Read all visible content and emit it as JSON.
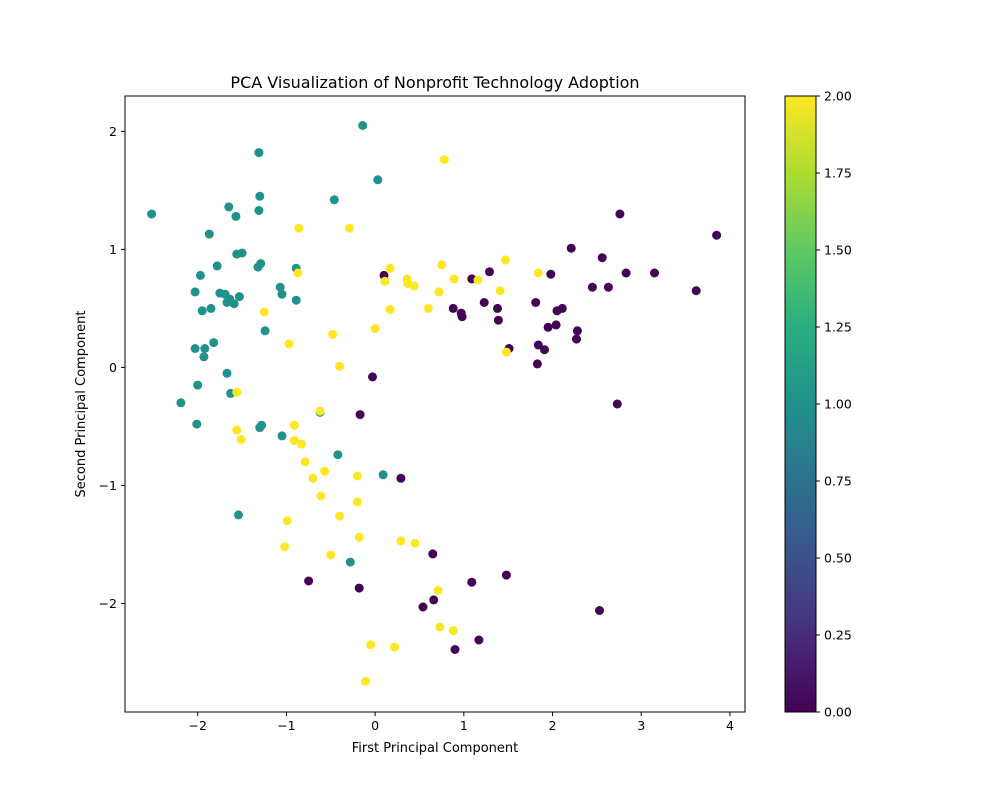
{
  "chart_data": {
    "type": "scatter",
    "title": "PCA Visualization of Nonprofit Technology Adoption",
    "xlabel": "First Principal Component",
    "ylabel": "Second Principal Component",
    "xlim": [
      -2.82,
      4.17
    ],
    "ylim": [
      -2.92,
      2.3
    ],
    "xticks": [
      -2,
      -1,
      0,
      1,
      2,
      3,
      4
    ],
    "yticks": [
      -2,
      -1,
      0,
      1,
      2
    ],
    "xtick_labels": [
      "−2",
      "−1",
      "0",
      "1",
      "2",
      "3",
      "4"
    ],
    "ytick_labels": [
      "−2",
      "−1",
      "0",
      "1",
      "2"
    ],
    "grid": false,
    "colormap": "viridis",
    "colorbar": {
      "range": [
        0,
        2
      ],
      "ticks": [
        0,
        0.25,
        0.5,
        0.75,
        1.0,
        1.25,
        1.5,
        1.75,
        2.0
      ],
      "tick_labels": [
        "0.00",
        "0.25",
        "0.50",
        "0.75",
        "1.00",
        "1.25",
        "1.50",
        "1.75",
        "2.00"
      ]
    },
    "colors": {
      "class_0": "#440154",
      "class_1": "#21918c",
      "class_2": "#fde725"
    },
    "points": [
      {
        "x": -2.52,
        "y": 1.3,
        "c": 1
      },
      {
        "x": -0.14,
        "y": 2.05,
        "c": 1
      },
      {
        "x": -1.31,
        "y": 1.82,
        "c": 1
      },
      {
        "x": 0.03,
        "y": 1.59,
        "c": 1
      },
      {
        "x": -0.46,
        "y": 1.42,
        "c": 1
      },
      {
        "x": -1.3,
        "y": 1.45,
        "c": 1
      },
      {
        "x": -1.65,
        "y": 1.36,
        "c": 1
      },
      {
        "x": -1.31,
        "y": 1.33,
        "c": 1
      },
      {
        "x": -1.57,
        "y": 1.28,
        "c": 1
      },
      {
        "x": -1.87,
        "y": 1.13,
        "c": 1
      },
      {
        "x": -1.5,
        "y": 0.97,
        "c": 1
      },
      {
        "x": -1.56,
        "y": 0.96,
        "c": 1
      },
      {
        "x": -1.29,
        "y": 0.88,
        "c": 1
      },
      {
        "x": -1.32,
        "y": 0.85,
        "c": 1
      },
      {
        "x": -1.78,
        "y": 0.86,
        "c": 1
      },
      {
        "x": -0.89,
        "y": 0.84,
        "c": 1
      },
      {
        "x": -1.97,
        "y": 0.78,
        "c": 1
      },
      {
        "x": -1.07,
        "y": 0.68,
        "c": 1
      },
      {
        "x": -2.03,
        "y": 0.64,
        "c": 1
      },
      {
        "x": -1.05,
        "y": 0.62,
        "c": 1
      },
      {
        "x": -1.75,
        "y": 0.63,
        "c": 1
      },
      {
        "x": -1.69,
        "y": 0.62,
        "c": 1
      },
      {
        "x": -1.53,
        "y": 0.6,
        "c": 1
      },
      {
        "x": -1.64,
        "y": 0.58,
        "c": 1
      },
      {
        "x": -0.89,
        "y": 0.57,
        "c": 1
      },
      {
        "x": -1.67,
        "y": 0.55,
        "c": 1
      },
      {
        "x": -1.59,
        "y": 0.54,
        "c": 1
      },
      {
        "x": -1.85,
        "y": 0.5,
        "c": 1
      },
      {
        "x": -1.95,
        "y": 0.48,
        "c": 1
      },
      {
        "x": -1.24,
        "y": 0.31,
        "c": 1
      },
      {
        "x": -1.82,
        "y": 0.21,
        "c": 1
      },
      {
        "x": -2.03,
        "y": 0.16,
        "c": 1
      },
      {
        "x": -1.92,
        "y": 0.16,
        "c": 1
      },
      {
        "x": -1.93,
        "y": 0.09,
        "c": 1
      },
      {
        "x": -1.67,
        "y": -0.05,
        "c": 1
      },
      {
        "x": -2.0,
        "y": -0.15,
        "c": 1
      },
      {
        "x": -1.63,
        "y": -0.22,
        "c": 1
      },
      {
        "x": -2.19,
        "y": -0.3,
        "c": 1
      },
      {
        "x": -0.62,
        "y": -0.38,
        "c": 1
      },
      {
        "x": -2.01,
        "y": -0.48,
        "c": 1
      },
      {
        "x": -1.28,
        "y": -0.49,
        "c": 1
      },
      {
        "x": -1.3,
        "y": -0.51,
        "c": 1
      },
      {
        "x": -1.05,
        "y": -0.58,
        "c": 1
      },
      {
        "x": -0.42,
        "y": -0.74,
        "c": 1
      },
      {
        "x": 0.09,
        "y": -0.91,
        "c": 1
      },
      {
        "x": -1.54,
        "y": -1.25,
        "c": 1
      },
      {
        "x": -0.28,
        "y": -1.65,
        "c": 1
      },
      {
        "x": 3.85,
        "y": 1.12,
        "c": 0
      },
      {
        "x": 2.76,
        "y": 1.3,
        "c": 0
      },
      {
        "x": 2.21,
        "y": 1.01,
        "c": 0
      },
      {
        "x": 2.56,
        "y": 0.93,
        "c": 0
      },
      {
        "x": 1.29,
        "y": 0.81,
        "c": 0
      },
      {
        "x": 1.98,
        "y": 0.79,
        "c": 0
      },
      {
        "x": 2.83,
        "y": 0.8,
        "c": 0
      },
      {
        "x": 3.15,
        "y": 0.8,
        "c": 0
      },
      {
        "x": 0.1,
        "y": 0.78,
        "c": 0
      },
      {
        "x": 1.09,
        "y": 0.75,
        "c": 0
      },
      {
        "x": 2.45,
        "y": 0.68,
        "c": 0
      },
      {
        "x": 2.63,
        "y": 0.68,
        "c": 0
      },
      {
        "x": 3.62,
        "y": 0.65,
        "c": 0
      },
      {
        "x": 1.23,
        "y": 0.55,
        "c": 0
      },
      {
        "x": 1.81,
        "y": 0.55,
        "c": 0
      },
      {
        "x": 0.88,
        "y": 0.5,
        "c": 0
      },
      {
        "x": 1.38,
        "y": 0.5,
        "c": 0
      },
      {
        "x": 2.11,
        "y": 0.5,
        "c": 0
      },
      {
        "x": 2.05,
        "y": 0.48,
        "c": 0
      },
      {
        "x": 0.97,
        "y": 0.46,
        "c": 0
      },
      {
        "x": 0.98,
        "y": 0.43,
        "c": 0
      },
      {
        "x": 1.39,
        "y": 0.4,
        "c": 0
      },
      {
        "x": 2.04,
        "y": 0.36,
        "c": 0
      },
      {
        "x": 1.95,
        "y": 0.34,
        "c": 0
      },
      {
        "x": 2.28,
        "y": 0.31,
        "c": 0
      },
      {
        "x": 2.27,
        "y": 0.24,
        "c": 0
      },
      {
        "x": 1.84,
        "y": 0.19,
        "c": 0
      },
      {
        "x": 1.51,
        "y": 0.16,
        "c": 0
      },
      {
        "x": 1.91,
        "y": 0.15,
        "c": 0
      },
      {
        "x": 1.83,
        "y": 0.03,
        "c": 0
      },
      {
        "x": -0.03,
        "y": -0.08,
        "c": 0
      },
      {
        "x": 2.73,
        "y": -0.31,
        "c": 0
      },
      {
        "x": -0.17,
        "y": -0.4,
        "c": 0
      },
      {
        "x": 0.29,
        "y": -0.94,
        "c": 0
      },
      {
        "x": 0.65,
        "y": -1.58,
        "c": 0
      },
      {
        "x": 1.48,
        "y": -1.76,
        "c": 0
      },
      {
        "x": -0.75,
        "y": -1.81,
        "c": 0
      },
      {
        "x": 1.09,
        "y": -1.82,
        "c": 0
      },
      {
        "x": -0.18,
        "y": -1.87,
        "c": 0
      },
      {
        "x": 0.66,
        "y": -1.97,
        "c": 0
      },
      {
        "x": 0.54,
        "y": -2.03,
        "c": 0
      },
      {
        "x": 2.53,
        "y": -2.06,
        "c": 0
      },
      {
        "x": 1.17,
        "y": -2.31,
        "c": 0
      },
      {
        "x": 0.9,
        "y": -2.39,
        "c": 0
      },
      {
        "x": 0.78,
        "y": 1.76,
        "c": 2
      },
      {
        "x": -0.29,
        "y": 1.18,
        "c": 2
      },
      {
        "x": -0.86,
        "y": 1.18,
        "c": 2
      },
      {
        "x": 1.47,
        "y": 0.91,
        "c": 2
      },
      {
        "x": 0.75,
        "y": 0.87,
        "c": 2
      },
      {
        "x": 0.17,
        "y": 0.84,
        "c": 2
      },
      {
        "x": 1.84,
        "y": 0.8,
        "c": 2
      },
      {
        "x": -0.87,
        "y": 0.8,
        "c": 2
      },
      {
        "x": 0.89,
        "y": 0.75,
        "c": 2
      },
      {
        "x": 0.36,
        "y": 0.75,
        "c": 2
      },
      {
        "x": 1.16,
        "y": 0.74,
        "c": 2
      },
      {
        "x": 0.11,
        "y": 0.73,
        "c": 2
      },
      {
        "x": 0.37,
        "y": 0.71,
        "c": 2
      },
      {
        "x": 0.44,
        "y": 0.69,
        "c": 2
      },
      {
        "x": 1.41,
        "y": 0.65,
        "c": 2
      },
      {
        "x": 0.72,
        "y": 0.64,
        "c": 2
      },
      {
        "x": 0.6,
        "y": 0.5,
        "c": 2
      },
      {
        "x": 0.17,
        "y": 0.49,
        "c": 2
      },
      {
        "x": -1.25,
        "y": 0.47,
        "c": 2
      },
      {
        "x": 0.0,
        "y": 0.33,
        "c": 2
      },
      {
        "x": -0.48,
        "y": 0.28,
        "c": 2
      },
      {
        "x": -0.97,
        "y": 0.2,
        "c": 2
      },
      {
        "x": 1.48,
        "y": 0.13,
        "c": 2
      },
      {
        "x": -0.4,
        "y": 0.01,
        "c": 2
      },
      {
        "x": -1.56,
        "y": -0.21,
        "c": 2
      },
      {
        "x": -0.62,
        "y": -0.37,
        "c": 2
      },
      {
        "x": -0.91,
        "y": -0.49,
        "c": 2
      },
      {
        "x": -1.56,
        "y": -0.53,
        "c": 2
      },
      {
        "x": -1.51,
        "y": -0.61,
        "c": 2
      },
      {
        "x": -0.91,
        "y": -0.62,
        "c": 2
      },
      {
        "x": -0.83,
        "y": -0.65,
        "c": 2
      },
      {
        "x": -0.79,
        "y": -0.8,
        "c": 2
      },
      {
        "x": -0.57,
        "y": -0.88,
        "c": 2
      },
      {
        "x": -0.7,
        "y": -0.94,
        "c": 2
      },
      {
        "x": -0.2,
        "y": -0.92,
        "c": 2
      },
      {
        "x": -0.61,
        "y": -1.09,
        "c": 2
      },
      {
        "x": -0.2,
        "y": -1.14,
        "c": 2
      },
      {
        "x": -0.4,
        "y": -1.26,
        "c": 2
      },
      {
        "x": -0.99,
        "y": -1.3,
        "c": 2
      },
      {
        "x": -0.18,
        "y": -1.44,
        "c": 2
      },
      {
        "x": 0.29,
        "y": -1.47,
        "c": 2
      },
      {
        "x": 0.45,
        "y": -1.49,
        "c": 2
      },
      {
        "x": -1.02,
        "y": -1.52,
        "c": 2
      },
      {
        "x": -0.5,
        "y": -1.59,
        "c": 2
      },
      {
        "x": 0.71,
        "y": -1.89,
        "c": 2
      },
      {
        "x": 0.73,
        "y": -2.2,
        "c": 2
      },
      {
        "x": 0.88,
        "y": -2.23,
        "c": 2
      },
      {
        "x": -0.05,
        "y": -2.35,
        "c": 2
      },
      {
        "x": 0.22,
        "y": -2.37,
        "c": 2
      },
      {
        "x": -0.11,
        "y": -2.66,
        "c": 2
      }
    ]
  }
}
